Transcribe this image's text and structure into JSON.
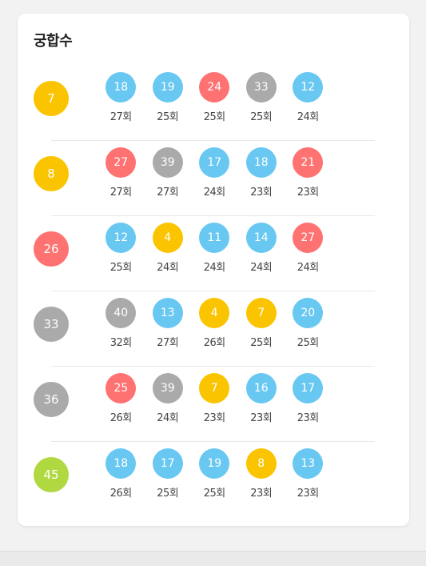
{
  "title": "궁합수",
  "rows": [
    {
      "number": "7",
      "color": "#fbc400",
      "pairs": [
        {
          "number": "18",
          "count": "27회",
          "color": "#69c8f2"
        },
        {
          "number": "19",
          "count": "25회",
          "color": "#69c8f2"
        },
        {
          "number": "24",
          "count": "25회",
          "color": "#ff7272"
        },
        {
          "number": "33",
          "count": "25회",
          "color": "#aaaaaa"
        },
        {
          "number": "12",
          "count": "24회",
          "color": "#69c8f2"
        }
      ]
    },
    {
      "number": "8",
      "color": "#fbc400",
      "pairs": [
        {
          "number": "27",
          "count": "27회",
          "color": "#ff7272"
        },
        {
          "number": "39",
          "count": "27회",
          "color": "#aaaaaa"
        },
        {
          "number": "17",
          "count": "24회",
          "color": "#69c8f2"
        },
        {
          "number": "18",
          "count": "23회",
          "color": "#69c8f2"
        },
        {
          "number": "21",
          "count": "23회",
          "color": "#ff7272"
        }
      ]
    },
    {
      "number": "26",
      "color": "#ff7272",
      "pairs": [
        {
          "number": "12",
          "count": "25회",
          "color": "#69c8f2"
        },
        {
          "number": "4",
          "count": "24회",
          "color": "#fbc400"
        },
        {
          "number": "11",
          "count": "24회",
          "color": "#69c8f2"
        },
        {
          "number": "14",
          "count": "24회",
          "color": "#69c8f2"
        },
        {
          "number": "27",
          "count": "24회",
          "color": "#ff7272"
        }
      ]
    },
    {
      "number": "33",
      "color": "#aaaaaa",
      "pairs": [
        {
          "number": "40",
          "count": "32회",
          "color": "#aaaaaa"
        },
        {
          "number": "13",
          "count": "27회",
          "color": "#69c8f2"
        },
        {
          "number": "4",
          "count": "26회",
          "color": "#fbc400"
        },
        {
          "number": "7",
          "count": "25회",
          "color": "#fbc400"
        },
        {
          "number": "20",
          "count": "25회",
          "color": "#69c8f2"
        }
      ]
    },
    {
      "number": "36",
      "color": "#aaaaaa",
      "pairs": [
        {
          "number": "25",
          "count": "26회",
          "color": "#ff7272"
        },
        {
          "number": "39",
          "count": "24회",
          "color": "#aaaaaa"
        },
        {
          "number": "7",
          "count": "23회",
          "color": "#fbc400"
        },
        {
          "number": "16",
          "count": "23회",
          "color": "#69c8f2"
        },
        {
          "number": "17",
          "count": "23회",
          "color": "#69c8f2"
        }
      ]
    },
    {
      "number": "45",
      "color": "#b0d840",
      "pairs": [
        {
          "number": "18",
          "count": "26회",
          "color": "#69c8f2"
        },
        {
          "number": "17",
          "count": "25회",
          "color": "#69c8f2"
        },
        {
          "number": "19",
          "count": "25회",
          "color": "#69c8f2"
        },
        {
          "number": "8",
          "count": "23회",
          "color": "#fbc400"
        },
        {
          "number": "13",
          "count": "23회",
          "color": "#69c8f2"
        }
      ]
    }
  ]
}
